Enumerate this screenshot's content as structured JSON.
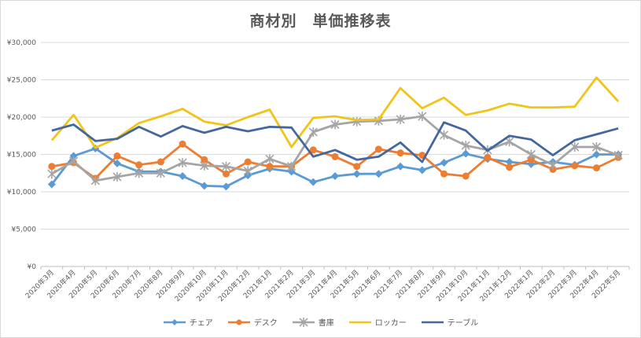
{
  "chart_data": {
    "type": "line",
    "title": "商材別　単価推移表",
    "xlabel": "",
    "ylabel": "",
    "ylim": [
      0,
      30000
    ],
    "y_ticks": [
      "¥0",
      "¥5,000",
      "¥10,000",
      "¥15,000",
      "¥20,000",
      "¥25,000",
      "¥30,000"
    ],
    "grid": true,
    "legend_position": "bottom",
    "categories": [
      "2020年3月",
      "2020年4月",
      "2020年5月",
      "2020年6月",
      "2020年7月",
      "2020年8月",
      "2020年9月",
      "2020年10月",
      "2020年11月",
      "2020年12月",
      "2021年1月",
      "2021年2月",
      "2021年3月",
      "2021年4月",
      "2021年5月",
      "2021年6月",
      "2021年7月",
      "2021年8月",
      "2021年9月",
      "2021年10月",
      "2021年11月",
      "2021年12月",
      "2022年1月",
      "2022年2月",
      "2022年3月",
      "2022年4月",
      "2022年5月"
    ],
    "series": [
      {
        "name": "チェア",
        "color": "#5b9bd5",
        "marker": "diamond",
        "values": [
          11000,
          14800,
          15800,
          13800,
          12700,
          12700,
          12100,
          10800,
          10700,
          12200,
          13100,
          12700,
          11300,
          12100,
          12400,
          12400,
          13400,
          12900,
          13900,
          15100,
          14400,
          14000,
          13700,
          14000,
          13600,
          15000,
          15000
        ]
      },
      {
        "name": "デスク",
        "color": "#ed7d31",
        "marker": "circle",
        "values": [
          13400,
          13900,
          11800,
          14800,
          13600,
          14000,
          16400,
          14300,
          12400,
          14000,
          13400,
          13400,
          15600,
          14700,
          13400,
          15700,
          15200,
          14900,
          12400,
          12100,
          14600,
          13300,
          14300,
          13000,
          13500,
          13200,
          14600
        ]
      },
      {
        "name": "書庫",
        "color": "#a5a5a5",
        "marker": "star",
        "values": [
          12400,
          14100,
          11500,
          12000,
          12500,
          12500,
          13900,
          13500,
          13400,
          12800,
          14400,
          13400,
          18000,
          19000,
          19400,
          19500,
          19700,
          20100,
          17600,
          16200,
          15600,
          16700,
          15000,
          13600,
          16000,
          16000,
          14900
        ]
      },
      {
        "name": "ロッカー",
        "color": "#f0c419",
        "marker": "none",
        "values": [
          16900,
          20300,
          15900,
          17200,
          19200,
          20100,
          21100,
          19400,
          18900,
          20000,
          21000,
          16000,
          19900,
          20100,
          19600,
          19700,
          23900,
          21200,
          22600,
          20300,
          20900,
          21800,
          21300,
          21300,
          21400,
          25300,
          22100
        ]
      },
      {
        "name": "テーブル",
        "color": "#44679e",
        "marker": "none",
        "values": [
          18200,
          19000,
          16800,
          17100,
          18700,
          17400,
          18800,
          17900,
          18700,
          18100,
          18700,
          18600,
          14700,
          15600,
          14300,
          14700,
          16600,
          14000,
          19300,
          18200,
          15500,
          17500,
          17000,
          14900,
          16900,
          17700,
          18500
        ]
      }
    ]
  }
}
